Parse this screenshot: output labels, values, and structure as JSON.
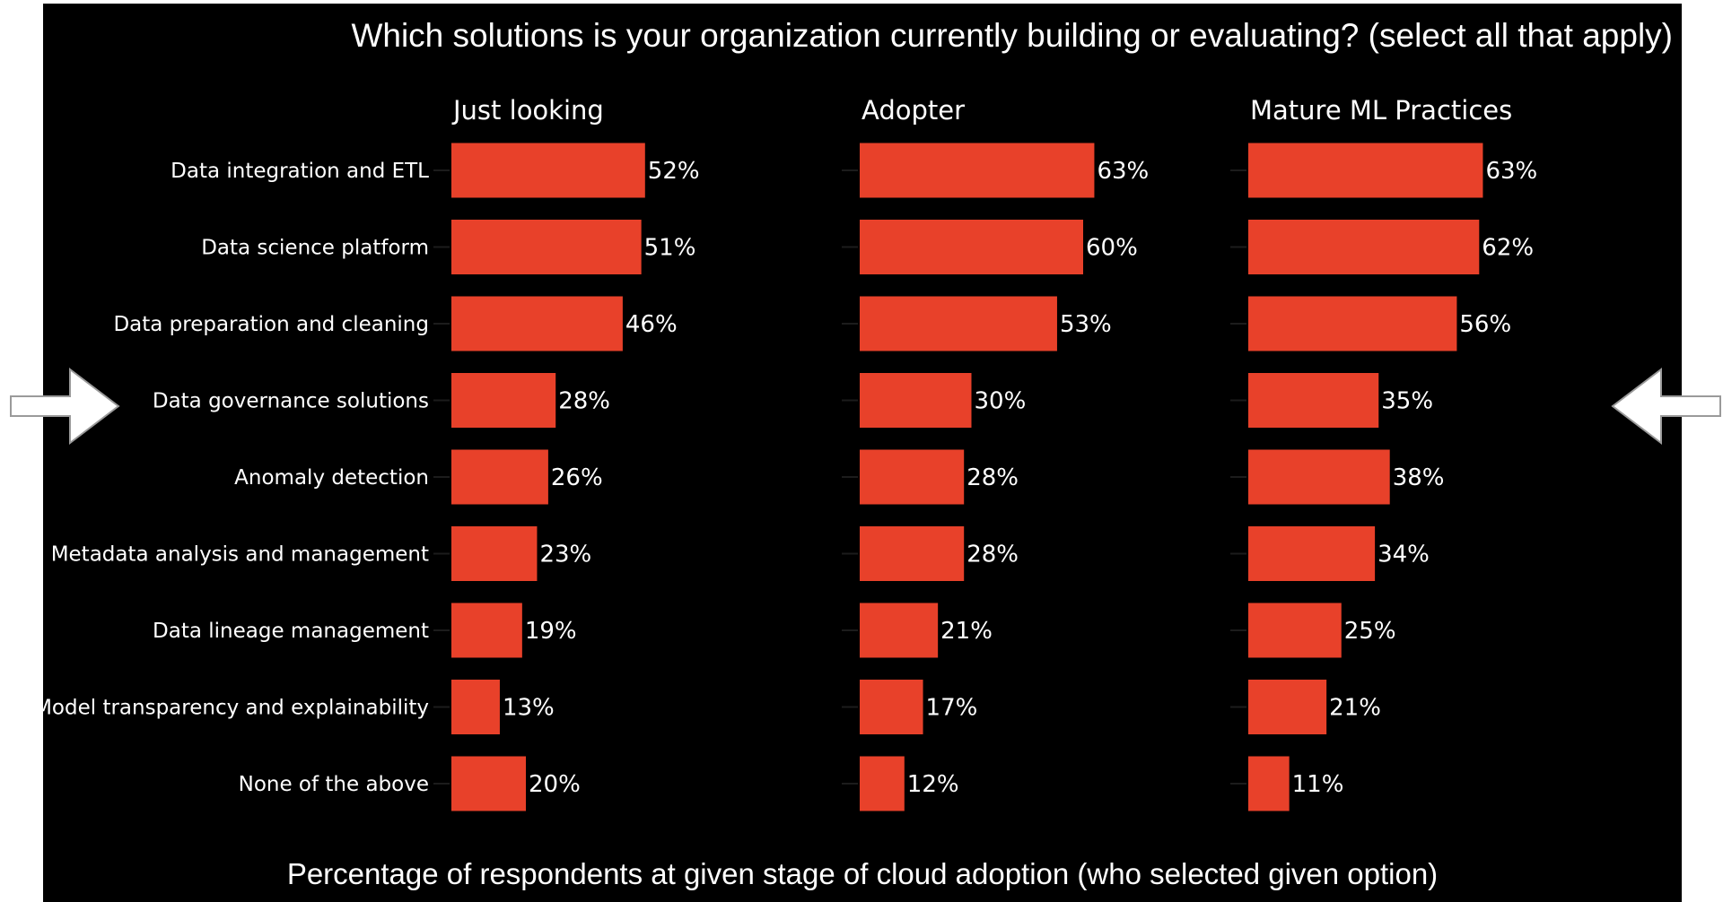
{
  "chart_data": {
    "type": "bar",
    "orientation": "horizontal",
    "title": "Which solutions is your organization currently building or evaluating? (select all that apply)",
    "xlabel": "Percentage of respondents at given stage of cloud adoption (who selected given option)",
    "ylabel": "",
    "xlim": [
      0,
      100
    ],
    "categories": [
      "Data integration and ETL",
      "Data science platform",
      "Data preparation and cleaning",
      "Data governance solutions",
      "Anomaly detection",
      "Metadata analysis and management",
      "Data lineage management",
      "Model transparency and explainability",
      "None of the above"
    ],
    "series": [
      {
        "name": "Just looking",
        "values": [
          52,
          51,
          46,
          28,
          26,
          23,
          19,
          13,
          20
        ],
        "labels": [
          "52%",
          "51%",
          "46%",
          "28%",
          "26%",
          "23%",
          "19%",
          "13%",
          "20%"
        ]
      },
      {
        "name": "Adopter",
        "values": [
          63,
          60,
          53,
          30,
          28,
          28,
          21,
          17,
          12
        ],
        "labels": [
          "63%",
          "60%",
          "53%",
          "30%",
          "28%",
          "28%",
          "21%",
          "17%",
          "12%"
        ]
      },
      {
        "name": "Mature ML Practices",
        "values": [
          63,
          62,
          56,
          35,
          38,
          34,
          25,
          21,
          11
        ],
        "labels": [
          "63%",
          "62%",
          "56%",
          "35%",
          "38%",
          "34%",
          "25%",
          "21%",
          "11%"
        ]
      }
    ],
    "highlighted_category": "Data governance solutions",
    "grid": false,
    "legend": "none"
  },
  "colors": {
    "background": "#000000",
    "bar": "#e8412a",
    "text": "#ffffff",
    "arrow_fill": "#ffffff",
    "arrow_stroke": "#9a9a9a"
  },
  "icons": {
    "left_arrow": "right-pointing-arrow-icon",
    "right_arrow": "left-pointing-arrow-icon"
  }
}
